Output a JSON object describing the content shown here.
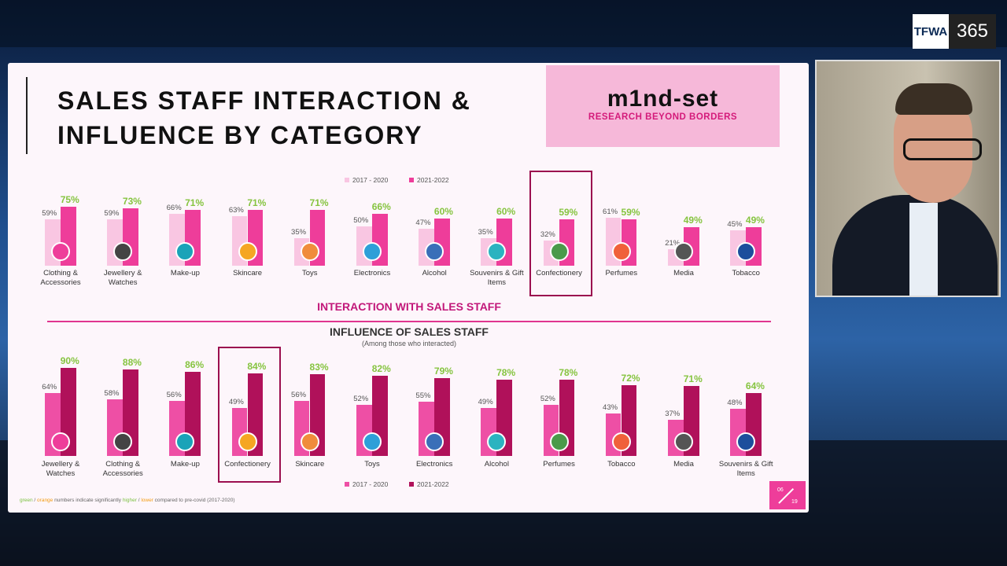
{
  "overlay": {
    "brand": "TFWA",
    "brand_number": "365"
  },
  "slide": {
    "title_lines": [
      "SALES STAFF INTERACTION &",
      "INFLUENCE BY CATEGORY"
    ],
    "logo": {
      "name": "m1nd-set",
      "tagline": "RESEARCH BEYOND BORDERS"
    },
    "footnote": [
      {
        "text": "green",
        "color": "#7cc142"
      },
      {
        "text": " / ",
        "color": "#666666"
      },
      {
        "text": "orange",
        "color": "#f39c12"
      },
      {
        "text": " numbers indicate significantly ",
        "color": "#666666"
      },
      {
        "text": "higher",
        "color": "#7cc142"
      },
      {
        "text": " / ",
        "color": "#666666"
      },
      {
        "text": "lower",
        "color": "#f39c12"
      },
      {
        "text": " compared to pre-covid (2017-2020)",
        "color": "#666666"
      }
    ],
    "page": {
      "current": "06",
      "total": "19"
    }
  },
  "chart_data": [
    {
      "type": "bar",
      "title": "INTERACTION WITH SALES STAFF",
      "categories": [
        "Clothing & Accessories",
        "Jewellery & Watches",
        "Make-up",
        "Skincare",
        "Toys",
        "Electronics",
        "Alcohol",
        "Souvenirs & Gift Items",
        "Confectionery",
        "Perfumes",
        "Media",
        "Tobacco"
      ],
      "series": [
        {
          "name": "2017 - 2020",
          "color": "#f9c6e2",
          "label_color": "#555555",
          "values": [
            59,
            59,
            66,
            63,
            35,
            50,
            47,
            35,
            32,
            61,
            21,
            45
          ],
          "value_labels": [
            "59%",
            "59%",
            "66%",
            "63%",
            "35%",
            "50%",
            "47%",
            "35%",
            "32%",
            "61%",
            "21%",
            "45%"
          ]
        },
        {
          "name": "2021-2022",
          "color": "#ee3d9a",
          "label_color": "#86c440",
          "values": [
            75,
            73,
            71,
            71,
            71,
            66,
            60,
            60,
            59,
            59,
            49,
            49
          ],
          "value_labels": [
            "75%",
            "73%",
            "71%",
            "71%",
            "71%",
            "66%",
            "60%",
            "60%",
            "59%",
            "59%",
            "49%",
            "49%"
          ]
        }
      ]
    },
    {
      "type": "bar",
      "title": "INFLUENCE OF SALES STAFF",
      "subtitle": "(Among those who interacted)",
      "categories": [
        "Jewellery & Watches",
        "Clothing & Accessories",
        "Make-up",
        "Confectionery",
        "Skincare",
        "Toys",
        "Electronics",
        "Alcohol",
        "Perfumes",
        "Tobacco",
        "Media",
        "Souvenirs & Gift Items"
      ],
      "series": [
        {
          "name": "2017 - 2020",
          "color": "#ee4fa5",
          "label_color": "#555555",
          "values": [
            64,
            58,
            56,
            49,
            56,
            52,
            55,
            49,
            52,
            43,
            37,
            48
          ],
          "value_labels": [
            "64%",
            "58%",
            "56%",
            "49%",
            "56%",
            "52%",
            "55%",
            "49%",
            "52%",
            "43%",
            "37%",
            "48%"
          ]
        },
        {
          "name": "2021-2022",
          "color": "#b0115a",
          "label_color": "#86c440",
          "values": [
            90,
            88,
            86,
            84,
            83,
            82,
            79,
            78,
            78,
            72,
            71,
            64
          ],
          "value_labels": [
            "90%",
            "88%",
            "86%",
            "84%",
            "83%",
            "82%",
            "79%",
            "78%",
            "78%",
            "72%",
            "71%",
            "64%"
          ]
        }
      ]
    }
  ]
}
